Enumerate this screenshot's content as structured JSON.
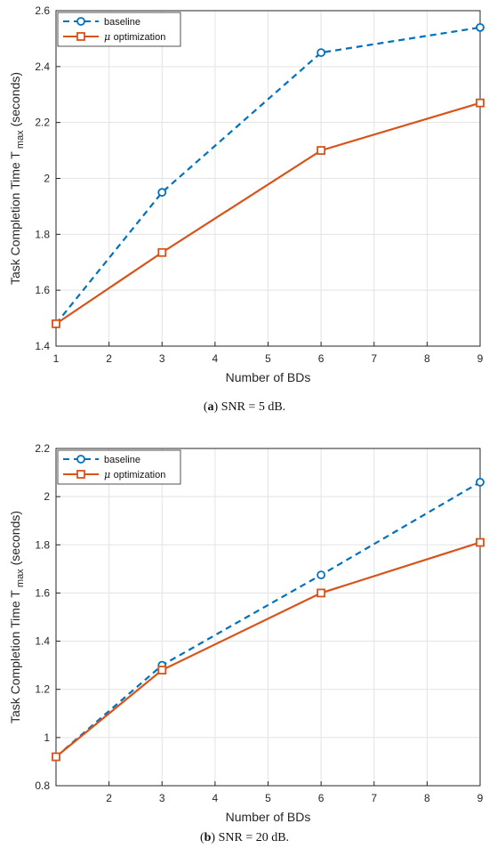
{
  "chart_data": [
    {
      "type": "line",
      "caption_label": "a",
      "caption_text": "SNR = 5 dB.",
      "xlabel": "Number of BDs",
      "ylabel": "Task Completion Time T",
      "ylabel_sub": "max",
      "ylabel_unit": "(seconds)",
      "xlim": [
        1,
        9
      ],
      "ylim": [
        1.4,
        2.6
      ],
      "xticks": [
        1,
        2,
        3,
        4,
        5,
        6,
        7,
        8,
        9
      ],
      "yticks": [
        1.4,
        1.6,
        1.8,
        2.0,
        2.2,
        2.4,
        2.6
      ],
      "ytick_labels": [
        "1.4",
        "1.6",
        "1.8",
        "2",
        "2.2",
        "2.4",
        "2.6"
      ],
      "grid": true,
      "legend_position": "top-left",
      "series": [
        {
          "name": "baseline",
          "name_prefix": "",
          "color": "#0072BD",
          "dash": true,
          "marker": "circle",
          "x": [
            1,
            3,
            6,
            9
          ],
          "y": [
            1.48,
            1.95,
            2.45,
            2.54
          ]
        },
        {
          "name": "optimization",
          "name_prefix": "μ",
          "color": "#D95319",
          "dash": false,
          "marker": "square",
          "x": [
            1,
            3,
            6,
            9
          ],
          "y": [
            1.48,
            1.735,
            2.1,
            2.27
          ]
        }
      ]
    },
    {
      "type": "line",
      "caption_label": "b",
      "caption_text": "SNR = 20 dB.",
      "xlabel": "Number of BDs",
      "ylabel": "Task Completion Time T",
      "ylabel_sub": "max",
      "ylabel_unit": "(seconds)",
      "xlim": [
        1,
        9
      ],
      "ylim": [
        0.8,
        2.2
      ],
      "xticks": [
        2,
        3,
        4,
        5,
        6,
        7,
        8,
        9
      ],
      "yticks": [
        0.8,
        1.0,
        1.2,
        1.4,
        1.6,
        1.8,
        2.0,
        2.2
      ],
      "ytick_labels": [
        "0.8",
        "1",
        "1.2",
        "1.4",
        "1.6",
        "1.8",
        "2",
        "2.2"
      ],
      "grid": true,
      "legend_position": "top-left",
      "series": [
        {
          "name": "baseline",
          "name_prefix": "",
          "color": "#0072BD",
          "dash": true,
          "marker": "circle",
          "x": [
            1,
            3,
            6,
            9
          ],
          "y": [
            0.92,
            1.3,
            1.675,
            2.06
          ]
        },
        {
          "name": "optimization",
          "name_prefix": "μ",
          "color": "#D95319",
          "dash": false,
          "marker": "square",
          "x": [
            1,
            3,
            6,
            9
          ],
          "y": [
            0.92,
            1.28,
            1.6,
            1.81
          ]
        }
      ]
    }
  ]
}
